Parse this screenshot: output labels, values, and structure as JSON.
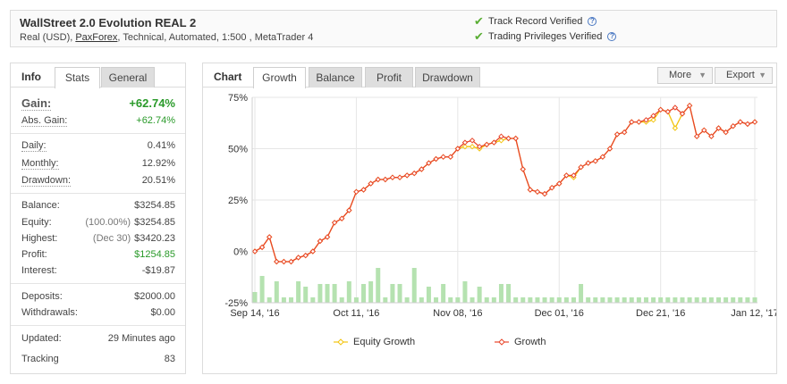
{
  "header": {
    "title": "WallStreet 2.0 Evolution REAL 2",
    "sub_prefix": "Real (USD), ",
    "broker": "PaxForex",
    "sub_suffix": ", Technical, Automated, 1:500 , MetaTrader 4",
    "verifications": [
      {
        "label": "Track Record Verified"
      },
      {
        "label": "Trading Privileges Verified"
      }
    ]
  },
  "left_panel": {
    "title": "Info",
    "tabs": [
      "Stats",
      "General"
    ],
    "gain": {
      "label": "Gain:",
      "value": "+62.74%"
    },
    "abs_gain": {
      "label": "Abs. Gain:",
      "value": "+62.74%"
    },
    "daily": {
      "label": "Daily:",
      "value": "0.41%"
    },
    "monthly": {
      "label": "Monthly:",
      "value": "12.92%"
    },
    "drawdown": {
      "label": "Drawdown:",
      "value": "20.51%"
    },
    "balance": {
      "label": "Balance:",
      "value": "$3254.85"
    },
    "equity": {
      "label": "Equity:",
      "pre": "(100.00%)",
      "value": "$3254.85"
    },
    "highest": {
      "label": "Highest:",
      "pre": "(Dec 30)",
      "value": "$3420.23"
    },
    "profit": {
      "label": "Profit:",
      "value": "$1254.85"
    },
    "interest": {
      "label": "Interest:",
      "value": "-$19.87"
    },
    "deposits": {
      "label": "Deposits:",
      "value": "$2000.00"
    },
    "withdrawals": {
      "label": "Withdrawals:",
      "value": "$0.00"
    },
    "updated": {
      "label": "Updated:",
      "value": "29 Minutes ago"
    },
    "tracking": {
      "label": "Tracking",
      "value": "83"
    }
  },
  "chart_panel": {
    "title": "Chart",
    "tabs": [
      "Growth",
      "Balance",
      "Profit",
      "Drawdown"
    ],
    "active_tab": "Growth",
    "more_label": "More",
    "export_label": "Export"
  },
  "colors": {
    "growth": "#e8452a",
    "equity": "#f2c40f",
    "bars": "#b5e2b0",
    "green_value": "#2a9a2a",
    "check": "#5aae34"
  },
  "chart_data": {
    "type": "line",
    "title": "",
    "xlabel": "",
    "ylabel": "",
    "ylim": [
      -25,
      75
    ],
    "yticks": [
      "75%",
      "50%",
      "25%",
      "0%",
      "-25%"
    ],
    "xticks": [
      "Sep 14, '16",
      "Oct 11, '16",
      "Nov 08, '16",
      "Dec 01, '16",
      "Dec 21, '16",
      "Jan 12, '17"
    ],
    "legend": [
      "Equity Growth",
      "Growth"
    ],
    "legend_position": "bottom",
    "series": [
      {
        "name": "Growth",
        "values": [
          0,
          2,
          7,
          -5,
          -5,
          -5,
          -3,
          -2,
          0,
          5,
          7,
          14,
          16,
          20,
          29,
          30,
          33,
          35,
          35,
          36,
          36,
          37,
          38,
          40,
          43,
          45,
          46,
          46,
          50,
          53,
          54,
          51,
          52,
          53,
          56,
          55,
          55,
          40,
          30,
          29,
          28,
          31,
          33,
          37,
          37,
          41,
          43,
          44,
          46,
          50,
          57,
          58,
          63,
          63,
          64,
          66,
          69,
          68,
          70,
          67,
          71,
          56,
          59,
          56,
          60,
          58,
          61,
          63,
          62,
          63
        ]
      },
      {
        "name": "Equity Growth",
        "values": [
          0,
          2,
          7,
          -5,
          -5,
          -5,
          -3,
          -2,
          0,
          5,
          7,
          14,
          16,
          20,
          29,
          30,
          33,
          35,
          35,
          36,
          36,
          37,
          38,
          40,
          43,
          45,
          46,
          46,
          50,
          51,
          51,
          50,
          52,
          53,
          54,
          55,
          55,
          40,
          30,
          29,
          28,
          31,
          33,
          37,
          36,
          41,
          43,
          44,
          46,
          50,
          57,
          58,
          63,
          63,
          63,
          64,
          69,
          68,
          60,
          67,
          71,
          56,
          59,
          56,
          60,
          58,
          61,
          63,
          62,
          63
        ]
      }
    ],
    "bars": [
      4,
      10,
      2,
      8,
      2,
      2,
      8,
      6,
      2,
      7,
      7,
      7,
      2,
      8,
      2,
      7,
      8,
      13,
      2,
      7,
      7,
      2,
      13,
      2,
      6,
      2,
      7,
      2,
      2,
      8,
      2,
      6,
      2,
      2,
      7,
      7,
      2,
      2,
      2,
      2,
      2,
      2,
      2,
      2,
      2,
      7,
      2,
      2,
      2,
      2,
      2,
      2,
      2,
      2,
      2,
      2,
      2,
      2,
      2,
      2,
      2,
      2,
      2,
      2,
      2,
      2,
      2,
      2,
      2,
      2
    ]
  }
}
